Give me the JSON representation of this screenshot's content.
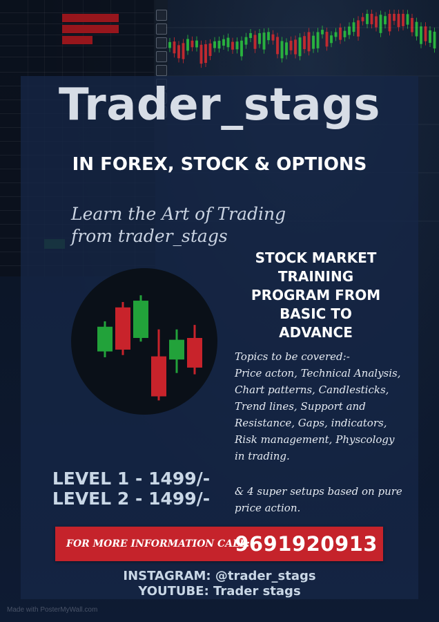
{
  "poster": {
    "title": "Trader_stags",
    "subtitle": "IN FOREX, STOCK & OPTIONS",
    "tagline": [
      "Learn the Art of Trading",
      "from trader_stags"
    ],
    "program_heading": [
      "STOCK MARKET",
      "TRAINING",
      "PROGRAM FROM",
      "BASIC TO",
      "ADVANCE"
    ],
    "topics_intro": "Topics to be covered:-",
    "topics_body": "Price acton, Technical Analysis, Chart patterns, Candlesticks, Trend lines, Support and Resistance, Gaps, indicators, Risk management, Physcology in trading.",
    "setups": "& 4 super setups based on pure price action.",
    "levels": [
      "LEVEL 1 - 1499/-",
      "LEVEL 2 - 1499/-"
    ],
    "cta_label": "FOR MORE INFORMATION CALL:",
    "phone": "9691920913",
    "instagram": "INSTAGRAM: @trader_stags",
    "youtube": "YOUTUBE: Trader stags",
    "watermark": "Made with PosterMyWall.com"
  },
  "colors": {
    "accent_red": "#c5232b",
    "candle_green": "#22a23a",
    "candle_red": "#c8232b",
    "background": "#0c1628"
  },
  "chart_data": {
    "type": "candlestick",
    "candles": [
      {
        "open": 1.0,
        "close": 1.55,
        "high": 1.67,
        "low": 0.87,
        "color": "green"
      },
      {
        "open": 1.98,
        "close": 1.04,
        "high": 2.1,
        "low": 0.92,
        "color": "red"
      },
      {
        "open": 1.3,
        "close": 2.13,
        "high": 2.25,
        "low": 1.22,
        "color": "green"
      },
      {
        "open": 0.89,
        "close": 0.0,
        "high": 1.49,
        "low": -0.09,
        "color": "red"
      },
      {
        "open": 0.82,
        "close": 1.26,
        "high": 1.49,
        "low": 0.52,
        "color": "green"
      },
      {
        "open": 1.3,
        "close": 0.64,
        "high": 1.59,
        "low": 0.49,
        "color": "red"
      }
    ]
  }
}
